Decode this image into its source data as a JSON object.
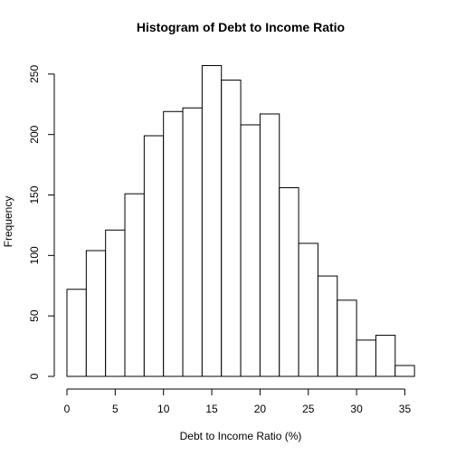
{
  "chart_data": {
    "type": "bar",
    "title": "Histogram of Debt to Income Ratio",
    "xlabel": "Debt to Income Ratio (%)",
    "ylabel": "Frequency",
    "xlim": [
      0,
      36
    ],
    "ylim": [
      0,
      260
    ],
    "x_ticks": [
      0,
      5,
      10,
      15,
      20,
      25,
      30,
      35
    ],
    "y_ticks": [
      0,
      50,
      100,
      150,
      200,
      250
    ],
    "bin_edges": [
      0,
      2,
      4,
      6,
      8,
      10,
      12,
      14,
      16,
      18,
      20,
      22,
      24,
      26,
      28,
      30,
      32,
      34,
      36
    ],
    "values": [
      72,
      104,
      121,
      151,
      199,
      219,
      222,
      257,
      245,
      208,
      217,
      156,
      110,
      83,
      63,
      30,
      34,
      9
    ],
    "grid": false,
    "legend": "none"
  }
}
